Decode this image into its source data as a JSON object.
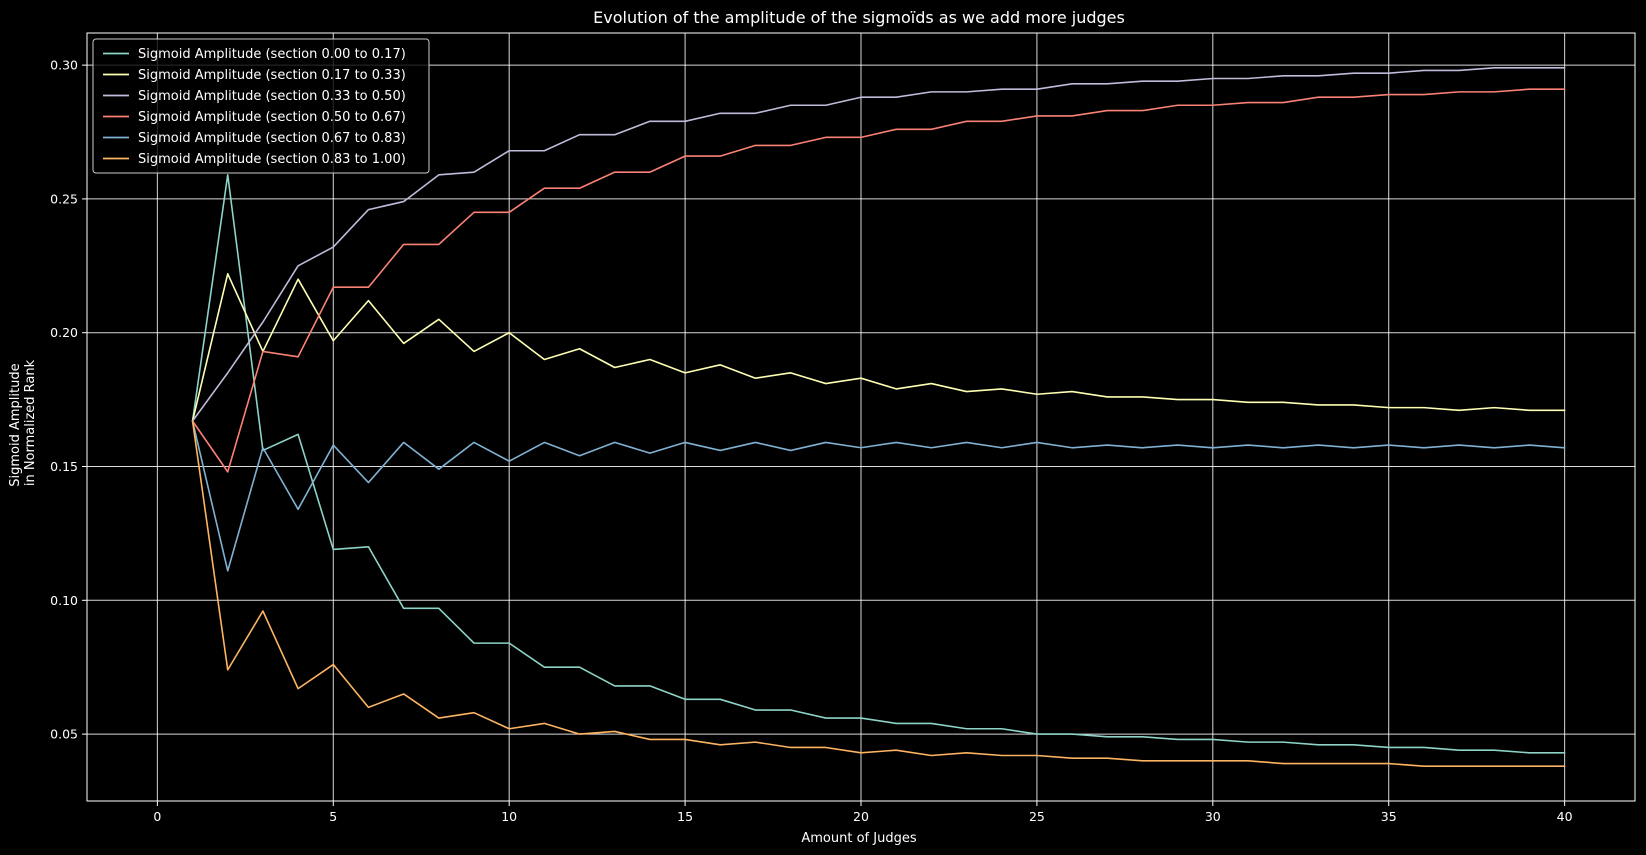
{
  "chart_data": {
    "type": "line",
    "title": "Evolution of the amplitude of the sigmoïds as we add more judges",
    "xlabel": "Amount of Judges",
    "ylabel_lines": [
      "Sigmoid Amplitude",
      "in Normalized Rank"
    ],
    "xlim": [
      -2,
      42
    ],
    "ylim": [
      0.025,
      0.312
    ],
    "x_ticks": [
      0,
      5,
      10,
      15,
      20,
      25,
      30,
      35,
      40
    ],
    "y_ticks": [
      0.05,
      0.1,
      0.15,
      0.2,
      0.25,
      0.3
    ],
    "y_tick_labels": [
      "0.05",
      "0.10",
      "0.15",
      "0.20",
      "0.25",
      "0.30"
    ],
    "grid": true,
    "legend_position": "top-left",
    "x": [
      1,
      2,
      3,
      4,
      5,
      6,
      7,
      8,
      9,
      10,
      11,
      12,
      13,
      14,
      15,
      16,
      17,
      18,
      19,
      20,
      21,
      22,
      23,
      24,
      25,
      26,
      27,
      28,
      29,
      30,
      31,
      32,
      33,
      34,
      35,
      36,
      37,
      38,
      39,
      40
    ],
    "series": [
      {
        "name": "Sigmoid Amplitude (section 0.00 to 0.17)",
        "color": "#8dd3c7",
        "values": [
          0.167,
          0.259,
          0.156,
          0.162,
          0.119,
          0.12,
          0.097,
          0.097,
          0.084,
          0.084,
          0.075,
          0.075,
          0.068,
          0.068,
          0.063,
          0.063,
          0.059,
          0.059,
          0.056,
          0.056,
          0.054,
          0.054,
          0.052,
          0.052,
          0.05,
          0.05,
          0.049,
          0.049,
          0.048,
          0.048,
          0.047,
          0.047,
          0.046,
          0.046,
          0.045,
          0.045,
          0.044,
          0.044,
          0.043,
          0.043
        ]
      },
      {
        "name": "Sigmoid Amplitude (section 0.17 to 0.33)",
        "color": "#feffb3",
        "values": [
          0.167,
          0.222,
          0.193,
          0.22,
          0.197,
          0.212,
          0.196,
          0.205,
          0.193,
          0.2,
          0.19,
          0.194,
          0.187,
          0.19,
          0.185,
          0.188,
          0.183,
          0.185,
          0.181,
          0.183,
          0.179,
          0.181,
          0.178,
          0.179,
          0.177,
          0.178,
          0.176,
          0.176,
          0.175,
          0.175,
          0.174,
          0.174,
          0.173,
          0.173,
          0.172,
          0.172,
          0.171,
          0.172,
          0.171,
          0.171
        ]
      },
      {
        "name": "Sigmoid Amplitude (section 0.33 to 0.50)",
        "color": "#bfbbd9",
        "values": [
          0.167,
          0.185,
          0.204,
          0.225,
          0.232,
          0.246,
          0.249,
          0.259,
          0.26,
          0.268,
          0.268,
          0.274,
          0.274,
          0.279,
          0.279,
          0.282,
          0.282,
          0.285,
          0.285,
          0.288,
          0.288,
          0.29,
          0.29,
          0.291,
          0.291,
          0.293,
          0.293,
          0.294,
          0.294,
          0.295,
          0.295,
          0.296,
          0.296,
          0.297,
          0.297,
          0.298,
          0.298,
          0.299,
          0.299,
          0.299
        ]
      },
      {
        "name": "Sigmoid Amplitude (section 0.50 to 0.67)",
        "color": "#fa8174",
        "values": [
          0.167,
          0.148,
          0.193,
          0.191,
          0.217,
          0.217,
          0.233,
          0.233,
          0.245,
          0.245,
          0.254,
          0.254,
          0.26,
          0.26,
          0.266,
          0.266,
          0.27,
          0.27,
          0.273,
          0.273,
          0.276,
          0.276,
          0.279,
          0.279,
          0.281,
          0.281,
          0.283,
          0.283,
          0.285,
          0.285,
          0.286,
          0.286,
          0.288,
          0.288,
          0.289,
          0.289,
          0.29,
          0.29,
          0.291,
          0.291
        ]
      },
      {
        "name": "Sigmoid Amplitude (section 0.67 to 0.83)",
        "color": "#81b1d2",
        "values": [
          0.167,
          0.111,
          0.157,
          0.134,
          0.158,
          0.144,
          0.159,
          0.149,
          0.159,
          0.152,
          0.159,
          0.154,
          0.159,
          0.155,
          0.159,
          0.156,
          0.159,
          0.156,
          0.159,
          0.157,
          0.159,
          0.157,
          0.159,
          0.157,
          0.159,
          0.157,
          0.158,
          0.157,
          0.158,
          0.157,
          0.158,
          0.157,
          0.158,
          0.157,
          0.158,
          0.157,
          0.158,
          0.157,
          0.158,
          0.157
        ]
      },
      {
        "name": "Sigmoid Amplitude (section 0.83 to 1.00)",
        "color": "#fdb462",
        "values": [
          0.167,
          0.074,
          0.096,
          0.067,
          0.076,
          0.06,
          0.065,
          0.056,
          0.058,
          0.052,
          0.054,
          0.05,
          0.051,
          0.048,
          0.048,
          0.046,
          0.047,
          0.045,
          0.045,
          0.043,
          0.044,
          0.042,
          0.043,
          0.042,
          0.042,
          0.041,
          0.041,
          0.04,
          0.04,
          0.04,
          0.04,
          0.039,
          0.039,
          0.039,
          0.039,
          0.038,
          0.038,
          0.038,
          0.038,
          0.038
        ]
      }
    ]
  }
}
